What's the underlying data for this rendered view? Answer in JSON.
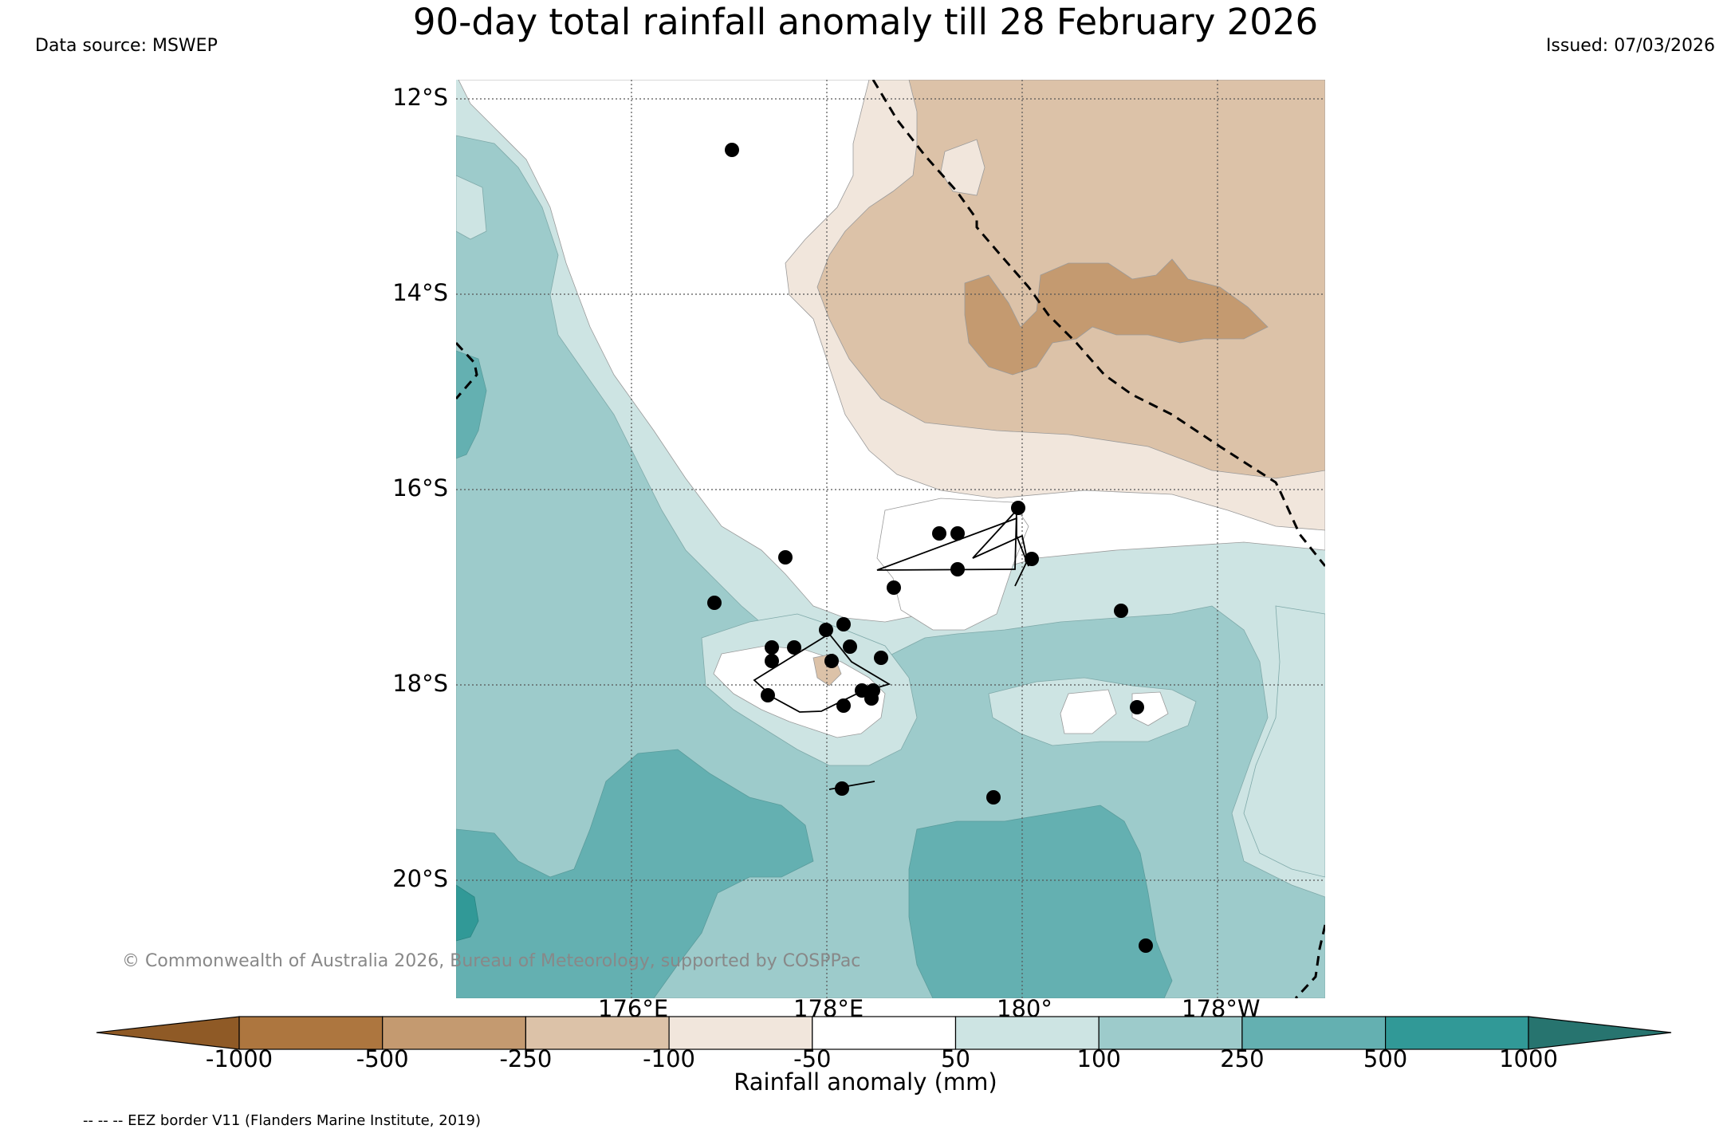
{
  "header": {
    "title": "90-day total rainfall anomaly till 28 February 2026",
    "data_source": "Data source: MSWEP",
    "issued": "Issued: 07/03/2026"
  },
  "map": {
    "lat_labels": [
      "12°S",
      "14°S",
      "16°S",
      "18°S",
      "20°S"
    ],
    "lon_labels": [
      "176°E",
      "178°E",
      "180°",
      "178°W"
    ],
    "credit": "© Commonwealth of Australia 2026, Bureau of Meteorology, supported by COSPPac",
    "colors": {
      "neg1000": "#8f5a26",
      "neg500": "#ad763f",
      "neg250": "#c49a70",
      "neg100": "#dcc2a8",
      "neg50": "#f1e6dc",
      "zero": "#ffffff",
      "pos50": "#cde4e3",
      "pos100": "#9dcbcb",
      "pos250": "#64b0b1",
      "pos500": "#319997",
      "pos1000": "#27746f",
      "point": "#000000"
    }
  },
  "colorbar": {
    "ticks": [
      "-1000",
      "-500",
      "-250",
      "-100",
      "-50",
      "50",
      "100",
      "250",
      "500",
      "1000"
    ],
    "label": "Rainfall anomaly (mm)"
  },
  "footer": {
    "eez_note": "-- -- -- EEZ border V11 (Flanders Marine Institute, 2019)"
  }
}
